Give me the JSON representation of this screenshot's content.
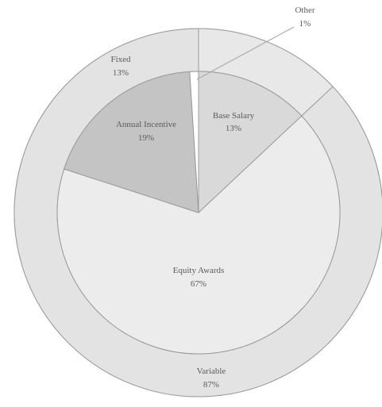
{
  "chart_data": {
    "type": "pie",
    "subtype": "nested-donut",
    "title": "",
    "colors": {
      "inner_salary": "#d9d9d9",
      "inner_incentive": "#c4c4c4",
      "inner_equity": "#ececec",
      "inner_other": "#ffffff",
      "outer_fixed": "#e8e8e8",
      "outer_variable": "#e3e3e3",
      "stroke": "#9a9a9a"
    },
    "inner": [
      {
        "label": "Base Salary",
        "value": 13,
        "value_label": "13%",
        "color_key": "inner_salary"
      },
      {
        "label": "Equity Awards",
        "value": 67,
        "value_label": "67%",
        "color_key": "inner_equity"
      },
      {
        "label": "Annual Incentive",
        "value": 19,
        "value_label": "19%",
        "color_key": "inner_incentive"
      },
      {
        "label": "Other",
        "value": 1,
        "value_label": "1%",
        "color_key": "inner_other"
      }
    ],
    "outer": [
      {
        "label": "Fixed",
        "value": 13,
        "value_label": "13%",
        "color_key": "outer_fixed"
      },
      {
        "label": "Variable",
        "value": 87,
        "value_label": "87%",
        "color_key": "outer_variable"
      }
    ]
  }
}
